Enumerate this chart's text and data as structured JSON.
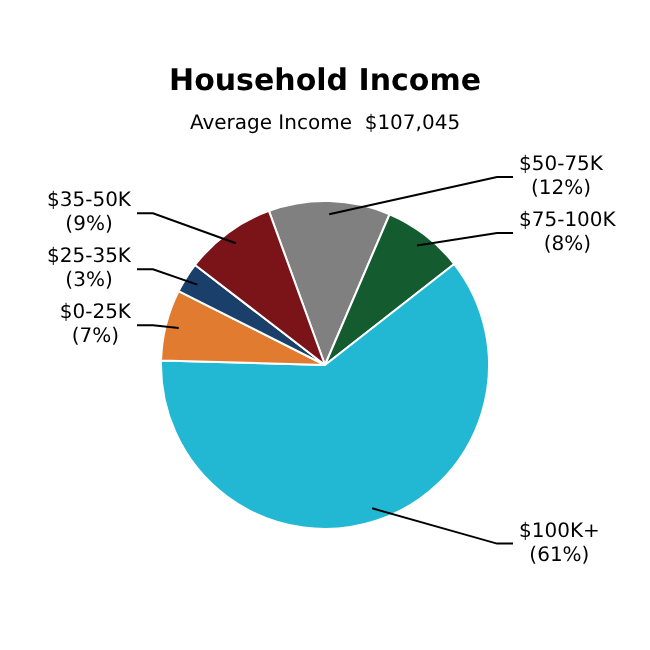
{
  "chart_data": {
    "type": "pie",
    "title": "Household Income",
    "subtitle": "Average Income  $107,045",
    "categories": [
      "$50-75K",
      "$75-100K",
      "$100K+",
      "$0-25K",
      "$25-35K",
      "$35-50K"
    ],
    "values": [
      12,
      8,
      61,
      7,
      3,
      9
    ],
    "value_labels": [
      "(12%)",
      "(8%)",
      "(61%)",
      "(7%)",
      "(3%)",
      "(9%)"
    ],
    "colors": [
      "#808080",
      "#145c30",
      "#22b8d4",
      "#e07b30",
      "#1a3f6b",
      "#7a1418"
    ],
    "legend": false
  }
}
